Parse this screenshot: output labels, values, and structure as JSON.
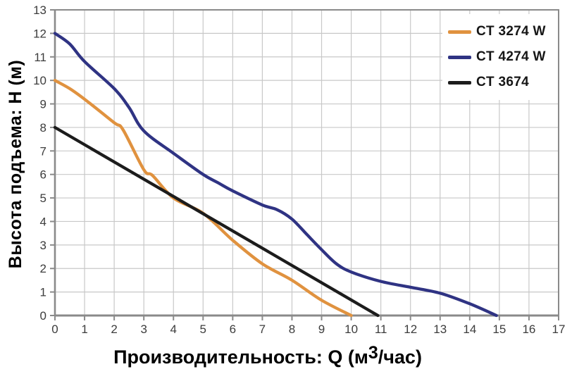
{
  "chart_data": {
    "type": "line",
    "title": "",
    "xlabel": "Производительность: Q (м3/час)",
    "xlabel_prefix": "Производительность: Q (м",
    "xlabel_sup": "3",
    "xlabel_suffix": "/час)",
    "ylabel": "Высота подъема: H (м)",
    "xlim": [
      0,
      17
    ],
    "ylim": [
      0,
      13
    ],
    "x_ticks": [
      0,
      1,
      2,
      3,
      4,
      5,
      6,
      7,
      8,
      9,
      10,
      11,
      12,
      13,
      14,
      15,
      16,
      17
    ],
    "y_ticks": [
      0,
      1,
      2,
      3,
      4,
      5,
      6,
      7,
      8,
      9,
      10,
      11,
      12,
      13
    ],
    "grid": true,
    "legend_position": "top-right",
    "series": [
      {
        "name": "CT 3274 W",
        "color": "#E0923F",
        "points": [
          [
            0,
            10
          ],
          [
            0.5,
            9.65
          ],
          [
            1,
            9.2
          ],
          [
            2,
            8.2
          ],
          [
            2.3,
            7.9
          ],
          [
            3,
            6.2
          ],
          [
            3.3,
            5.95
          ],
          [
            4,
            5.0
          ],
          [
            5,
            4.35
          ],
          [
            6,
            3.2
          ],
          [
            7,
            2.2
          ],
          [
            8,
            1.5
          ],
          [
            9,
            0.65
          ],
          [
            10,
            0
          ]
        ]
      },
      {
        "name": "CT 4274 W",
        "color": "#2F3383",
        "points": [
          [
            0,
            12
          ],
          [
            0.5,
            11.55
          ],
          [
            1,
            10.8
          ],
          [
            2,
            9.65
          ],
          [
            2.5,
            8.85
          ],
          [
            3,
            7.85
          ],
          [
            4,
            6.9
          ],
          [
            5,
            6.0
          ],
          [
            5.5,
            5.65
          ],
          [
            6,
            5.3
          ],
          [
            7,
            4.7
          ],
          [
            7.5,
            4.5
          ],
          [
            8,
            4.1
          ],
          [
            8.5,
            3.45
          ],
          [
            9,
            2.8
          ],
          [
            9.5,
            2.2
          ],
          [
            10,
            1.85
          ],
          [
            11,
            1.45
          ],
          [
            12,
            1.2
          ],
          [
            13,
            0.95
          ],
          [
            14,
            0.5
          ],
          [
            14.9,
            0
          ]
        ]
      },
      {
        "name": "CT 3674",
        "color": "#1C1C1C",
        "points": [
          [
            0,
            8
          ],
          [
            10.9,
            0
          ]
        ]
      }
    ]
  },
  "styles": {
    "grid_color": "#C8C8C8",
    "border_color": "#8A8A8A",
    "tick_label_color": "#3C3C3C"
  }
}
